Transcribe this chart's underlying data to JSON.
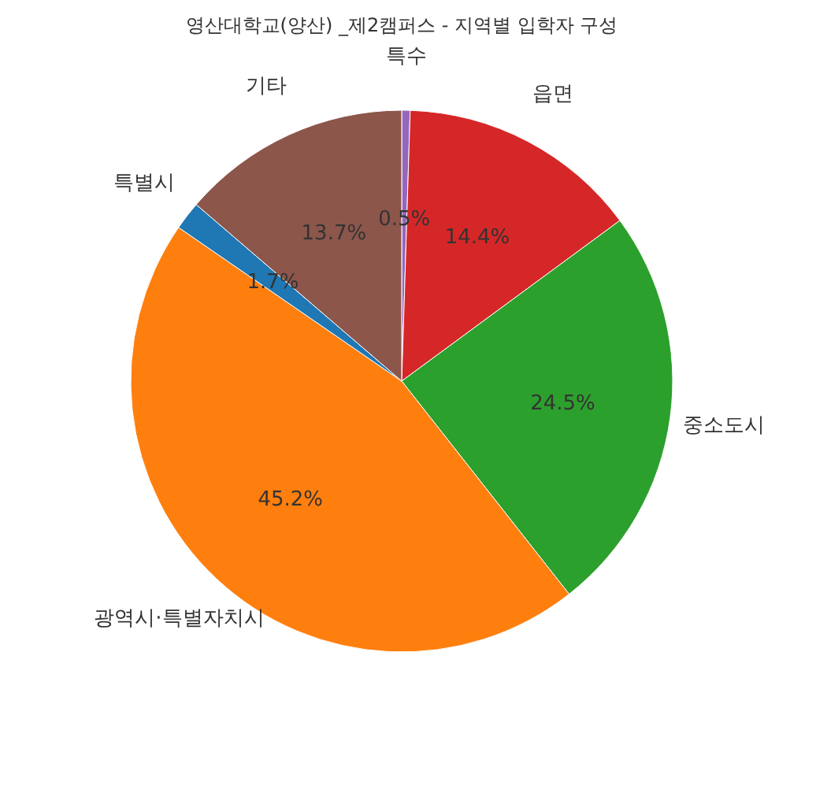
{
  "chart_data": {
    "type": "pie",
    "title": "영산대학교(양산) _제2캠퍼스 - 지역별 입학자 구성",
    "categories": [
      "특수",
      "읍면",
      "중소도시",
      "광역시·특별자치시",
      "특별시",
      "기타"
    ],
    "values": [
      0.5,
      14.4,
      24.5,
      45.2,
      1.7,
      13.7
    ],
    "colors": [
      "#9467bd",
      "#d62728",
      "#2ca02c",
      "#ff7f0e",
      "#1f77b4",
      "#8c564b"
    ],
    "value_labels": [
      "0.5%",
      "14.4%",
      "24.5%",
      "45.2%",
      "1.7%",
      "13.7%"
    ],
    "legend": false
  }
}
